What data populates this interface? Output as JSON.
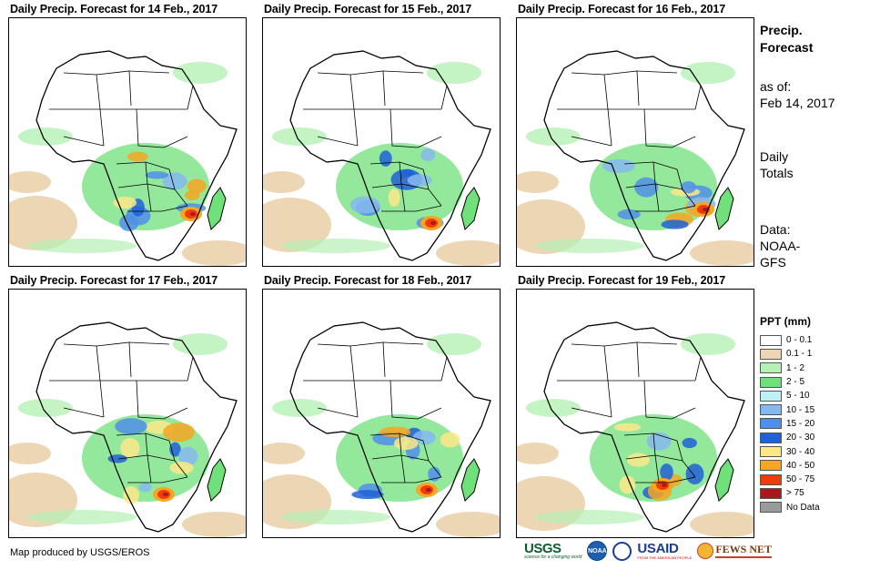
{
  "panels": [
    {
      "title": "Daily Precip. Forecast for 14 Feb., 2017"
    },
    {
      "title": "Daily Precip. Forecast for 15 Feb., 2017"
    },
    {
      "title": "Daily Precip. Forecast for 16 Feb., 2017"
    },
    {
      "title": "Daily Precip. Forecast for 17 Feb., 2017"
    },
    {
      "title": "Daily Precip. Forecast for 18 Feb., 2017"
    },
    {
      "title": "Daily Precip. Forecast for 19 Feb., 2017"
    }
  ],
  "side": {
    "title_line1": "Precip.",
    "title_line2": "Forecast",
    "asof_line1": "as of:",
    "asof_line2": "Feb 14, 2017",
    "totals_line1": "Daily",
    "totals_line2": "Totals",
    "data_line1": "Data:",
    "data_line2": "NOAA-",
    "data_line3": "GFS"
  },
  "legend": {
    "title": "PPT (mm)",
    "items": [
      {
        "label": "0 - 0.1",
        "color": "#ffffff"
      },
      {
        "label": "0.1 - 1",
        "color": "#ecd6b4"
      },
      {
        "label": "1 - 2",
        "color": "#b5f0b5"
      },
      {
        "label": "2 - 5",
        "color": "#6fe07a"
      },
      {
        "label": "5 - 10",
        "color": "#bff0f5"
      },
      {
        "label": "10 - 15",
        "color": "#86b8f0"
      },
      {
        "label": "15 - 20",
        "color": "#4f8fe8"
      },
      {
        "label": "20 - 30",
        "color": "#2060d8"
      },
      {
        "label": "30 - 40",
        "color": "#fde888"
      },
      {
        "label": "40 - 50",
        "color": "#f5a623"
      },
      {
        "label": "50 - 75",
        "color": "#f03c0c"
      },
      {
        "label": "> 75",
        "color": "#a8181c"
      },
      {
        "label": "No Data",
        "color": "#9a9a9a"
      }
    ]
  },
  "credit": "Map produced by USGS/EROS",
  "logos": {
    "usgs": "USGS",
    "usgs_tagline": "science for a changing world",
    "noaa": "NOAA",
    "usaid": "USAID",
    "usaid_tagline": "FROM THE AMERICAN PEOPLE",
    "fews": "FEWS NET"
  }
}
